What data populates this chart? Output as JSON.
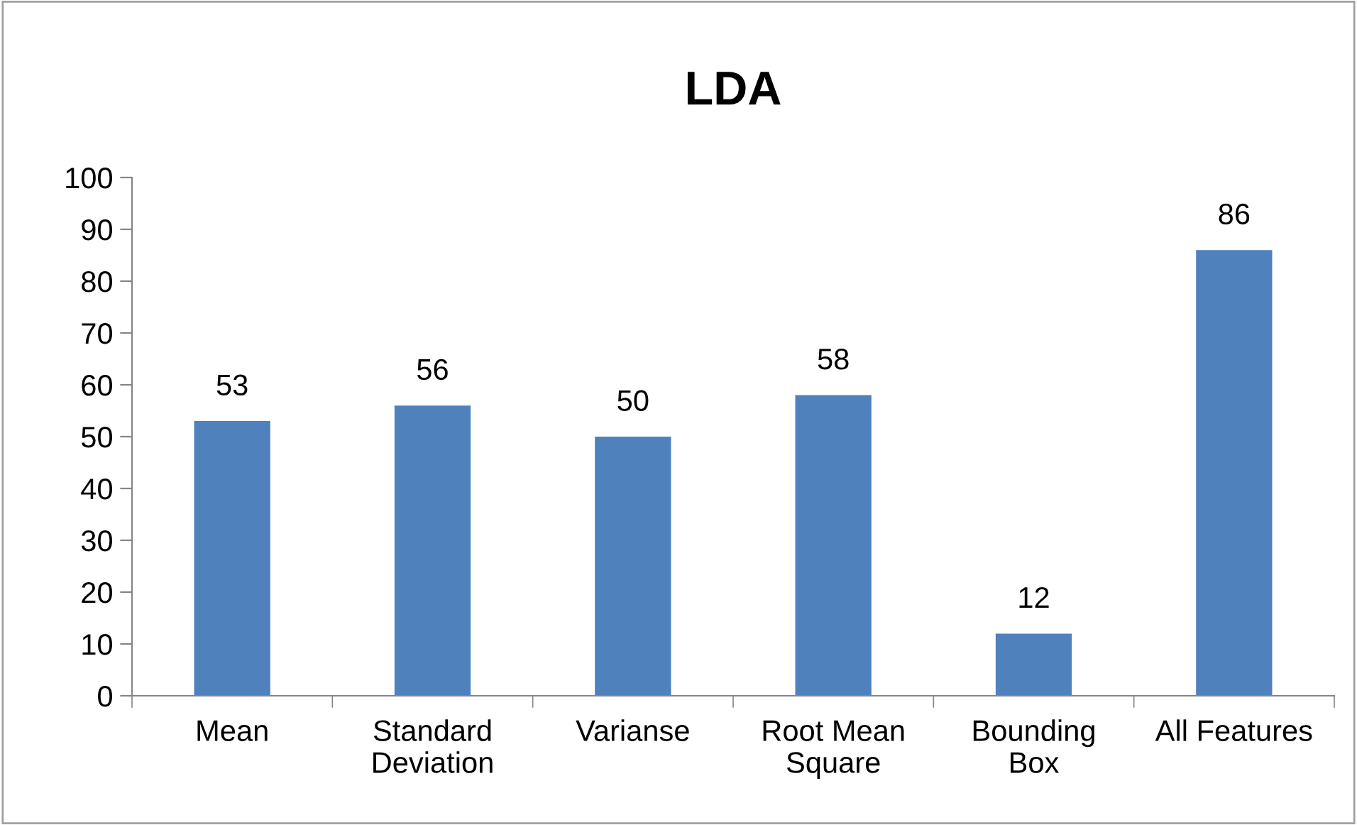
{
  "chart_data": {
    "type": "bar",
    "title": "LDA",
    "categories": [
      "Mean",
      "Standard\nDeviation",
      "Varianse",
      "Root Mean\nSquare",
      "Bounding\nBox",
      "All Features"
    ],
    "values": [
      53,
      56,
      50,
      58,
      12,
      86
    ],
    "color": "#4f81bd",
    "ylim": [
      0,
      100
    ],
    "yticks": [
      0,
      10,
      20,
      30,
      40,
      50,
      60,
      70,
      80,
      90,
      100
    ],
    "data_labels": true,
    "grid": false,
    "legend": false
  }
}
